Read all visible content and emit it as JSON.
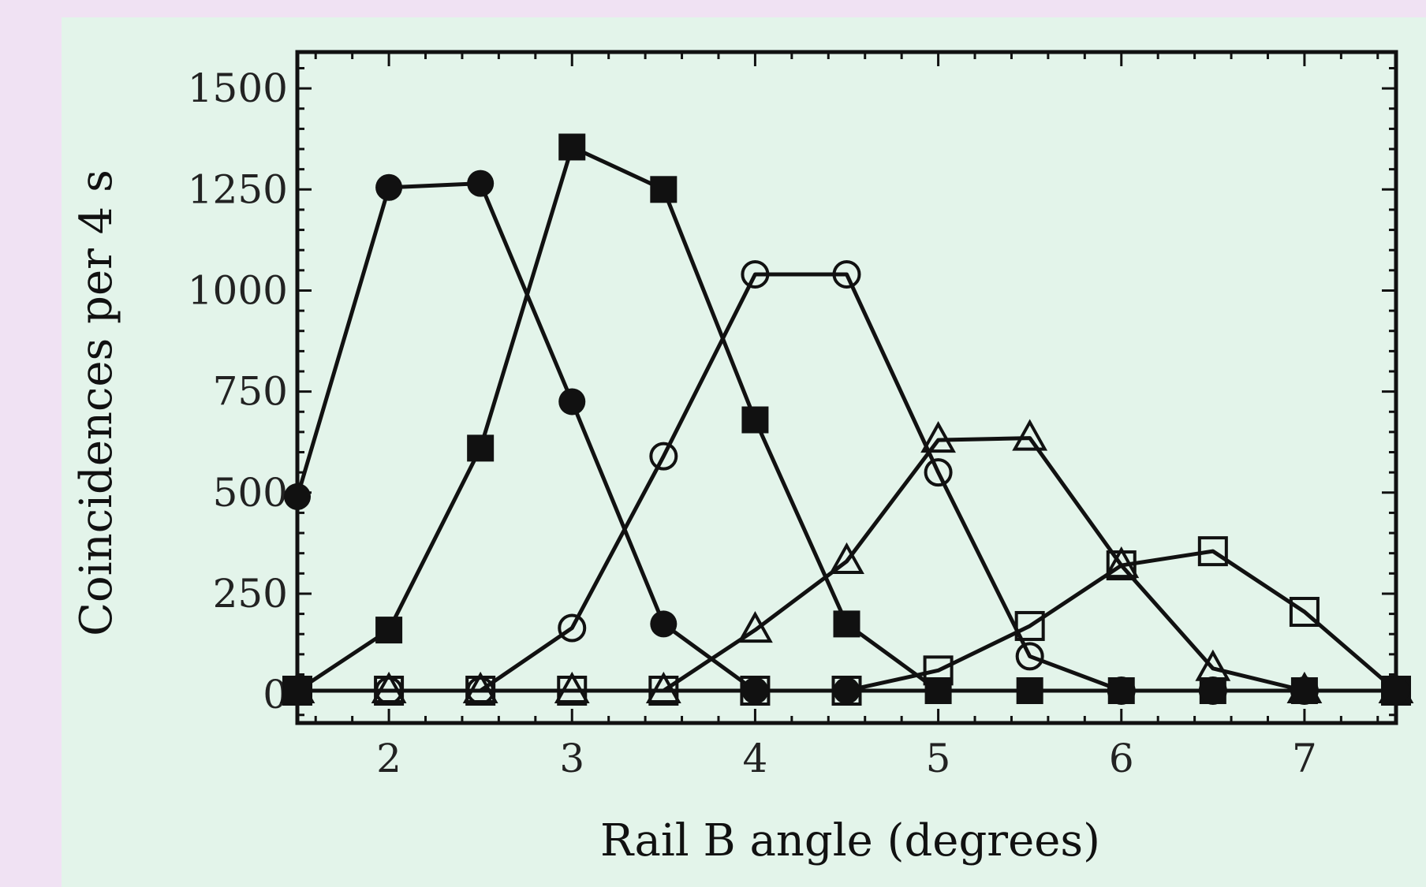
{
  "chart_data": {
    "type": "line",
    "xlabel": "Rail B angle (degrees)",
    "ylabel": "Coincidences per 4 s",
    "xlim": [
      1.5,
      7.5
    ],
    "ylim": [
      -70,
      1590
    ],
    "xticks": [
      2,
      3,
      4,
      5,
      6,
      7
    ],
    "yticks": [
      0,
      250,
      500,
      750,
      1000,
      1250,
      1500
    ],
    "grid": false,
    "legend": "none",
    "x": [
      1.5,
      2,
      2.5,
      3,
      3.5,
      4,
      4.5,
      5,
      5.5,
      6,
      6.5,
      7,
      7.5
    ],
    "series": [
      {
        "marker": "filled-circle",
        "values": [
          490,
          1255,
          1265,
          725,
          175,
          10,
          10,
          10,
          10,
          10,
          10,
          10,
          10
        ]
      },
      {
        "marker": "filled-square",
        "values": [
          10,
          160,
          610,
          1355,
          1250,
          680,
          175,
          10,
          10,
          10,
          10,
          10,
          10
        ]
      },
      {
        "marker": "open-circle",
        "values": [
          10,
          10,
          10,
          165,
          590,
          1040,
          1040,
          550,
          95,
          10,
          10,
          10,
          10
        ]
      },
      {
        "marker": "open-triangle",
        "values": [
          10,
          10,
          10,
          10,
          10,
          160,
          330,
          630,
          635,
          320,
          65,
          10,
          10
        ]
      },
      {
        "marker": "open-square",
        "values": [
          10,
          10,
          10,
          10,
          10,
          10,
          10,
          60,
          170,
          320,
          355,
          205,
          10
        ]
      }
    ]
  }
}
